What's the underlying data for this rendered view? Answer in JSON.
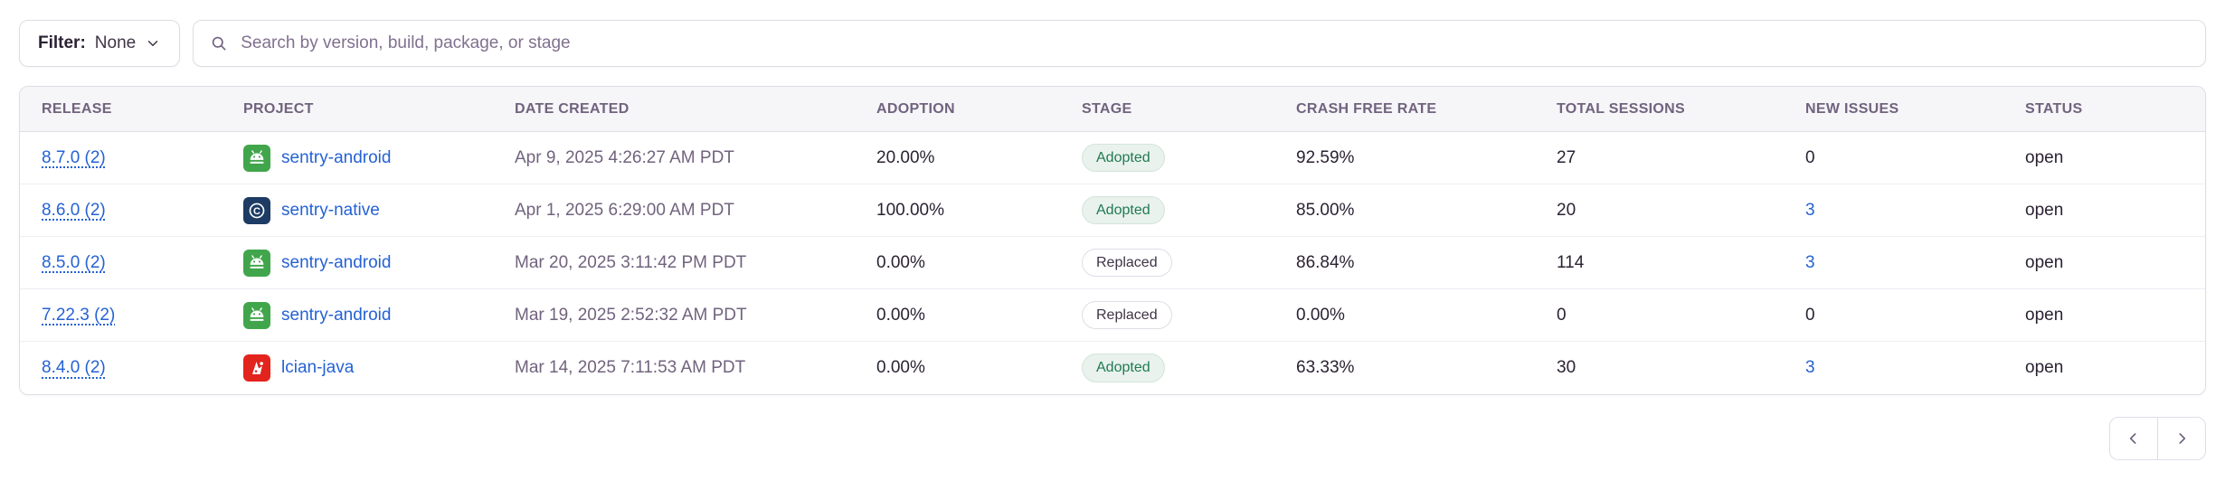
{
  "filter": {
    "label": "Filter:",
    "value": "None"
  },
  "search": {
    "placeholder": "Search by version, build, package, or stage",
    "value": ""
  },
  "table": {
    "columns": [
      "RELEASE",
      "PROJECT",
      "DATE CREATED",
      "ADOPTION",
      "STAGE",
      "CRASH FREE RATE",
      "TOTAL SESSIONS",
      "NEW ISSUES",
      "STATUS"
    ],
    "rows": [
      {
        "release": "8.7.0 (2)",
        "project": "sentry-android",
        "project_icon": "android-icon",
        "date_created": "Apr 9, 2025 4:26:27 AM PDT",
        "adoption": "20.00%",
        "stage": "Adopted",
        "crash_free_rate": "92.59%",
        "total_sessions": "27",
        "new_issues": "0",
        "new_issues_is_link": false,
        "status": "open"
      },
      {
        "release": "8.6.0 (2)",
        "project": "sentry-native",
        "project_icon": "native-icon",
        "date_created": "Apr 1, 2025 6:29:00 AM PDT",
        "adoption": "100.00%",
        "stage": "Adopted",
        "crash_free_rate": "85.00%",
        "total_sessions": "20",
        "new_issues": "3",
        "new_issues_is_link": true,
        "status": "open"
      },
      {
        "release": "8.5.0 (2)",
        "project": "sentry-android",
        "project_icon": "android-icon",
        "date_created": "Mar 20, 2025 3:11:42 PM PDT",
        "adoption": "0.00%",
        "stage": "Replaced",
        "crash_free_rate": "86.84%",
        "total_sessions": "114",
        "new_issues": "3",
        "new_issues_is_link": true,
        "status": "open"
      },
      {
        "release": "7.22.3 (2)",
        "project": "sentry-android",
        "project_icon": "android-icon",
        "date_created": "Mar 19, 2025 2:52:32 AM PDT",
        "adoption": "0.00%",
        "stage": "Replaced",
        "crash_free_rate": "0.00%",
        "total_sessions": "0",
        "new_issues": "0",
        "new_issues_is_link": false,
        "status": "open"
      },
      {
        "release": "8.4.0 (2)",
        "project": "lcian-java",
        "project_icon": "java-icon",
        "date_created": "Mar 14, 2025 7:11:53 AM PDT",
        "adoption": "0.00%",
        "stage": "Adopted",
        "crash_free_rate": "63.33%",
        "total_sessions": "30",
        "new_issues": "3",
        "new_issues_is_link": true,
        "status": "open"
      }
    ]
  },
  "pagination": {
    "prev_icon": "chevron-left-icon",
    "next_icon": "chevron-right-icon"
  },
  "colors": {
    "link_blue": "#2562D4",
    "header_text": "#71637E",
    "body_text": "#2B2233",
    "border": "#E0DCE5",
    "adopted_green": "#207A53",
    "adopted_bg": "#E9F2ED",
    "android_green": "#41A64B",
    "native_navy": "#1D3B63",
    "java_red": "#E2241D",
    "header_bg": "#F6F5F8"
  }
}
